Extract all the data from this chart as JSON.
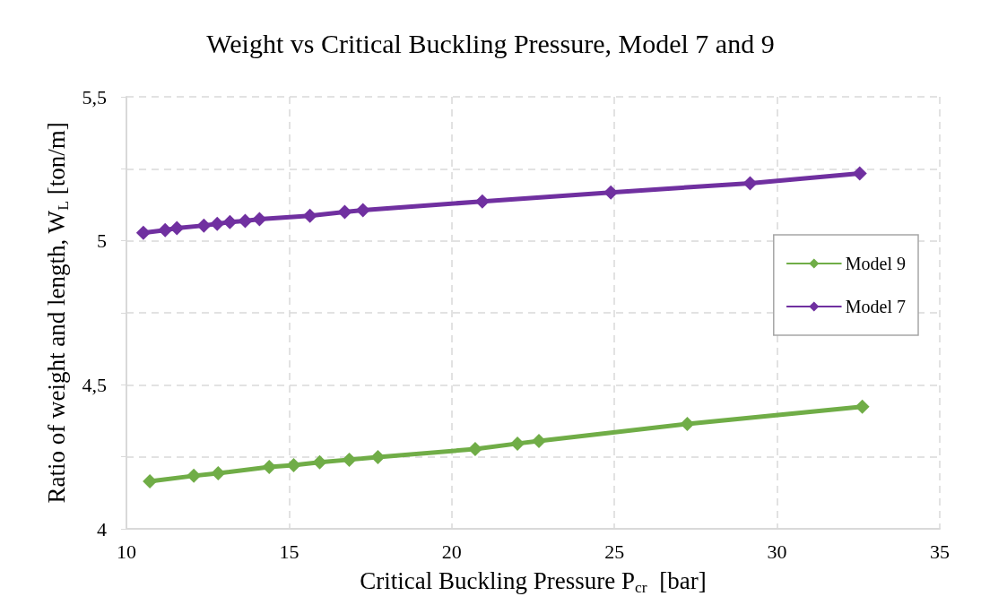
{
  "chart_data": {
    "type": "line",
    "title": "Weight vs Critical Buckling Pressure, Model 7 and 9",
    "xlabel": "Critical Buckling Pressure P$_{cr}$  [bar]",
    "ylabel": "Ratio of weight and length, W$_{L}$ [ton/m]",
    "series": [
      {
        "name": "Model 9",
        "color": "#70ad47",
        "x": [
          10.72,
          12.07,
          12.82,
          14.39,
          15.14,
          15.94,
          16.85,
          17.73,
          20.72,
          22.02,
          22.68,
          27.24,
          32.62
        ],
        "values": [
          4.165,
          4.184,
          4.193,
          4.215,
          4.221,
          4.231,
          4.24,
          4.249,
          4.277,
          4.296,
          4.305,
          4.364,
          4.424
        ]
      },
      {
        "name": "Model 7",
        "color": "#7030a0",
        "x": [
          10.52,
          11.19,
          11.55,
          12.38,
          12.79,
          13.18,
          13.65,
          14.09,
          15.64,
          16.71,
          17.27,
          20.94,
          24.89,
          29.17,
          32.54
        ],
        "values": [
          5.028,
          5.037,
          5.044,
          5.053,
          5.059,
          5.065,
          5.069,
          5.075,
          5.087,
          5.1,
          5.106,
          5.137,
          5.168,
          5.2,
          5.234
        ]
      }
    ],
    "xlim": [
      10,
      35
    ],
    "xticks": [
      10,
      15,
      20,
      25,
      30,
      35
    ],
    "ylim": [
      4,
      5.5
    ],
    "yticks": [
      4,
      {
        "value": 4.25,
        "label": null
      },
      {
        "value": 4.5,
        "label": "4,5"
      },
      {
        "value": 4.75,
        "label": null
      },
      5,
      {
        "value": 5.25,
        "label": null
      },
      {
        "value": 5.5,
        "label": "5,5"
      }
    ],
    "grid": true,
    "legend": "right",
    "marker": "diamond",
    "line_style": "solid"
  }
}
